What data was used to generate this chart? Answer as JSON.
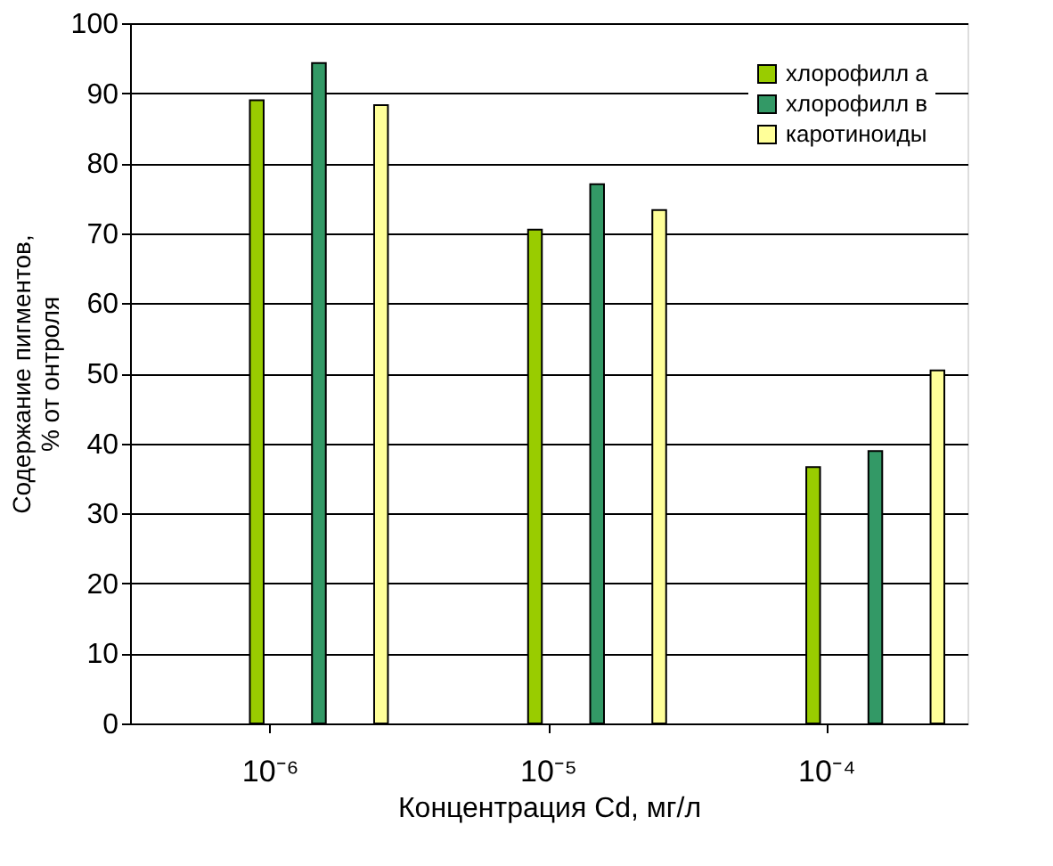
{
  "chart_data": {
    "type": "bar",
    "xlabel": "Концентрация Cd, мг/л",
    "ylabel": "Содержание пигментов,\n% от онтроля",
    "categories": [
      "10⁻⁶",
      "10⁻⁵",
      "10⁻⁴"
    ],
    "series": [
      {
        "name": "хлорофилл а",
        "color": "#99cc00",
        "values": [
          89.0,
          70.5,
          36.6
        ]
      },
      {
        "name": "хлорофилл в",
        "color": "#339966",
        "values": [
          94.3,
          77.0,
          38.9
        ]
      },
      {
        "name": "каротиноиды",
        "color": "#ffff99",
        "values": [
          88.3,
          73.3,
          50.4
        ]
      }
    ],
    "ylim": [
      0,
      100
    ],
    "yticks": [
      0,
      10,
      20,
      30,
      40,
      50,
      60,
      70,
      80,
      90,
      100
    ],
    "grid": "y",
    "legend": "top right"
  }
}
